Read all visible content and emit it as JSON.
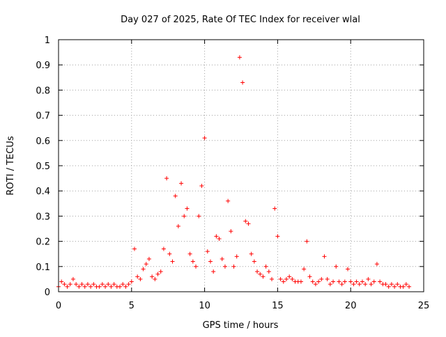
{
  "chart_data": {
    "type": "scatter",
    "title": "Day 027 of 2025, Rate Of TEC Index for receiver wlal",
    "xlabel": "GPS time / hours",
    "ylabel": "ROTI / TECUs",
    "xlim": [
      0,
      25
    ],
    "ylim": [
      0,
      1
    ],
    "x_ticks": [
      "0",
      "5",
      "10",
      "15",
      "20",
      "25"
    ],
    "y_ticks": [
      "0",
      "0.1",
      "0.2",
      "0.3",
      "0.4",
      "0.5",
      "0.6",
      "0.7",
      "0.8",
      "0.9",
      "1"
    ],
    "grid": true,
    "marker": "plus",
    "color": "#ff0000",
    "series": [
      {
        "x": [
          0.0,
          0.2,
          0.4,
          0.6,
          0.8,
          1.0,
          1.2,
          1.4,
          1.6,
          1.8,
          2.0,
          2.2,
          2.4,
          2.6,
          2.8,
          3.0,
          3.2,
          3.4,
          3.6,
          3.8,
          4.0,
          4.2,
          4.4,
          4.6,
          4.8,
          5.0,
          5.2,
          5.4,
          5.6,
          5.8,
          6.0,
          6.2,
          6.4,
          6.6,
          6.8,
          7.0,
          7.2,
          7.4,
          7.6,
          7.8,
          8.0,
          8.2,
          8.4,
          8.6,
          8.8,
          9.0,
          9.2,
          9.4,
          9.6,
          9.8,
          10.0,
          10.2,
          10.4,
          10.6,
          10.8,
          11.0,
          11.2,
          11.4,
          11.6,
          11.8,
          12.0,
          12.2,
          12.4,
          12.6,
          12.8,
          13.0,
          13.2,
          13.4,
          13.6,
          13.8,
          14.0,
          14.2,
          14.4,
          14.6,
          14.8,
          15.0,
          15.2,
          15.4,
          15.6,
          15.8,
          16.0,
          16.2,
          16.4,
          16.6,
          16.8,
          17.0,
          17.2,
          17.4,
          17.6,
          17.8,
          18.0,
          18.2,
          18.4,
          18.6,
          18.8,
          19.0,
          19.2,
          19.4,
          19.6,
          19.8,
          20.0,
          20.2,
          20.4,
          20.6,
          20.8,
          21.0,
          21.2,
          21.4,
          21.6,
          21.8,
          22.0,
          22.2,
          22.4,
          22.6,
          22.8,
          23.0,
          23.2,
          23.4,
          23.6,
          23.8,
          24.0
        ],
        "y": [
          0.02,
          0.04,
          0.03,
          0.02,
          0.03,
          0.05,
          0.03,
          0.02,
          0.03,
          0.02,
          0.03,
          0.02,
          0.03,
          0.02,
          0.02,
          0.03,
          0.02,
          0.03,
          0.02,
          0.03,
          0.02,
          0.02,
          0.03,
          0.02,
          0.03,
          0.04,
          0.17,
          0.06,
          0.05,
          0.09,
          0.11,
          0.13,
          0.06,
          0.05,
          0.07,
          0.08,
          0.17,
          0.45,
          0.15,
          0.12,
          0.38,
          0.26,
          0.43,
          0.3,
          0.33,
          0.15,
          0.12,
          0.1,
          0.3,
          0.42,
          0.61,
          0.16,
          0.12,
          0.08,
          0.22,
          0.21,
          0.13,
          0.1,
          0.36,
          0.24,
          0.1,
          0.14,
          0.93,
          0.83,
          0.28,
          0.27,
          0.15,
          0.12,
          0.08,
          0.07,
          0.06,
          0.1,
          0.08,
          0.05,
          0.33,
          0.22,
          0.05,
          0.04,
          0.05,
          0.06,
          0.05,
          0.04,
          0.04,
          0.04,
          0.09,
          0.2,
          0.06,
          0.04,
          0.03,
          0.04,
          0.05,
          0.14,
          0.05,
          0.03,
          0.04,
          0.1,
          0.04,
          0.03,
          0.04,
          0.09,
          0.04,
          0.03,
          0.04,
          0.03,
          0.04,
          0.03,
          0.05,
          0.03,
          0.04,
          0.11,
          0.04,
          0.03,
          0.03,
          0.02,
          0.03,
          0.02,
          0.03,
          0.02,
          0.02,
          0.03,
          0.02
        ]
      }
    ]
  }
}
